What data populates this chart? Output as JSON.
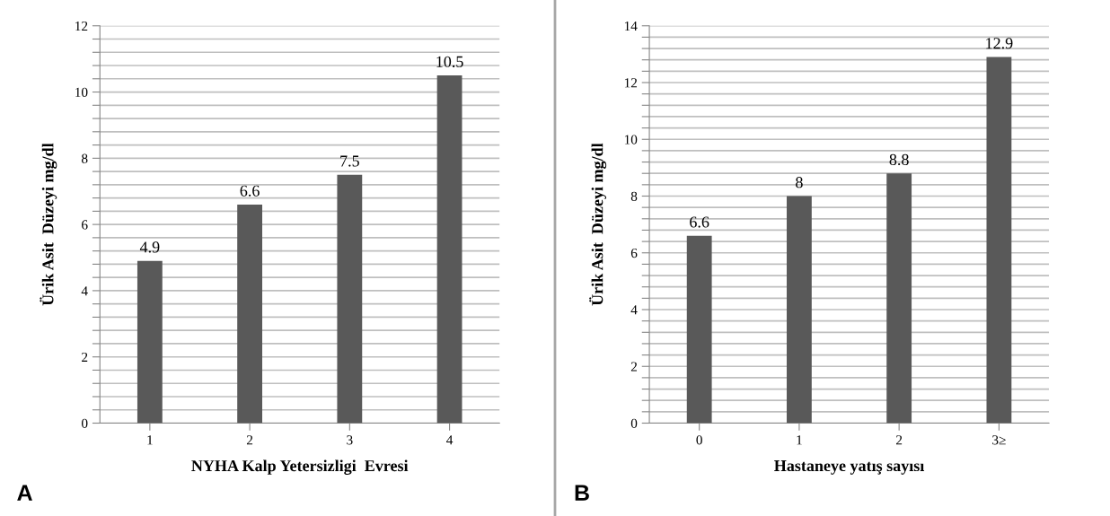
{
  "chart_data": [
    {
      "type": "bar",
      "xlabel": "NYHA Kalp Yetersizligi  Evresi",
      "ylabel": "Ürik Asit  Düzeyi mg/dl",
      "categories": [
        "1",
        "2",
        "3",
        "4"
      ],
      "values": [
        4.9,
        6.6,
        7.5,
        10.5
      ],
      "color": "#595959",
      "data_labels": true,
      "ylim": [
        0,
        12
      ],
      "yticks": [
        0,
        {
          "value": 0.4,
          "label": null
        },
        {
          "value": 0.8,
          "label": null
        },
        {
          "value": 1.2,
          "label": null
        },
        {
          "value": 1.6,
          "label": null
        },
        2,
        {
          "value": 2.4,
          "label": null
        },
        {
          "value": 2.8,
          "label": null
        },
        {
          "value": 3.2,
          "label": null
        },
        {
          "value": 3.6,
          "label": null
        },
        4,
        {
          "value": 4.4,
          "label": null
        },
        {
          "value": 4.8,
          "label": null
        },
        {
          "value": 5.2,
          "label": null
        },
        {
          "value": 5.6,
          "label": null
        },
        6,
        {
          "value": 6.4,
          "label": null
        },
        {
          "value": 6.8,
          "label": null
        },
        {
          "value": 7.2,
          "label": null
        },
        {
          "value": 7.6,
          "label": null
        },
        8,
        {
          "value": 8.4,
          "label": null
        },
        {
          "value": 8.8,
          "label": null
        },
        {
          "value": 9.2,
          "label": null
        },
        {
          "value": 9.6,
          "label": null
        },
        10,
        {
          "value": 10.4,
          "label": null
        },
        {
          "value": 10.8,
          "label": null
        },
        {
          "value": 11.2,
          "label": null
        },
        {
          "value": 11.6,
          "label": null
        },
        12
      ],
      "grid": "y",
      "annotations": [
        "A"
      ]
    },
    {
      "type": "bar",
      "xlabel": "Hastaneye yatış sayısı",
      "ylabel": "Ürik Asit  Düzeyi mg/dl",
      "categories": [
        "0",
        "1",
        "2",
        "3≥"
      ],
      "values": [
        6.6,
        8,
        8.8,
        12.9
      ],
      "color": "#595959",
      "data_labels": true,
      "ylim": [
        0,
        14
      ],
      "yticks": [
        0,
        {
          "value": 0.4,
          "label": null
        },
        {
          "value": 0.8,
          "label": null
        },
        {
          "value": 1.2,
          "label": null
        },
        {
          "value": 1.6,
          "label": null
        },
        2,
        {
          "value": 2.4,
          "label": null
        },
        {
          "value": 2.8,
          "label": null
        },
        {
          "value": 3.2,
          "label": null
        },
        {
          "value": 3.6,
          "label": null
        },
        4,
        {
          "value": 4.4,
          "label": null
        },
        {
          "value": 4.8,
          "label": null
        },
        {
          "value": 5.2,
          "label": null
        },
        {
          "value": 5.6,
          "label": null
        },
        6,
        {
          "value": 6.4,
          "label": null
        },
        {
          "value": 6.8,
          "label": null
        },
        {
          "value": 7.2,
          "label": null
        },
        {
          "value": 7.6,
          "label": null
        },
        8,
        {
          "value": 8.4,
          "label": null
        },
        {
          "value": 8.8,
          "label": null
        },
        {
          "value": 9.2,
          "label": null
        },
        {
          "value": 9.6,
          "label": null
        },
        10,
        {
          "value": 10.4,
          "label": null
        },
        {
          "value": 10.8,
          "label": null
        },
        {
          "value": 11.2,
          "label": null
        },
        {
          "value": 11.6,
          "label": null
        },
        12,
        {
          "value": 12.4,
          "label": null
        },
        {
          "value": 12.8,
          "label": null
        },
        {
          "value": 13.2,
          "label": null
        },
        {
          "value": 13.6,
          "label": null
        },
        14
      ],
      "grid": "y",
      "annotations": [
        "B"
      ]
    }
  ]
}
